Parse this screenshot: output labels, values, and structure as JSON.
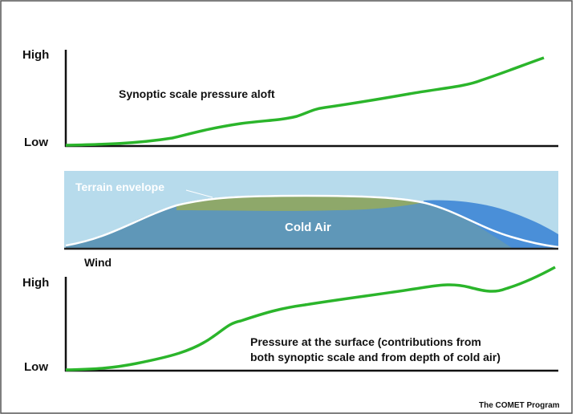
{
  "top_panel": {
    "high_label": "High",
    "low_label": "Low",
    "title": "Synoptic scale pressure aloft"
  },
  "terrain_panel": {
    "envelope_label": "Terrain envelope",
    "cold_air_label": "Cold Air",
    "wind_label": "Wind"
  },
  "bottom_panel": {
    "high_label": "High",
    "low_label": "Low",
    "caption_lines": [
      "Pressure at the surface (contributions from",
      "both synoptic scale and from depth of cold air)"
    ]
  },
  "credit": "The COMET Program"
}
